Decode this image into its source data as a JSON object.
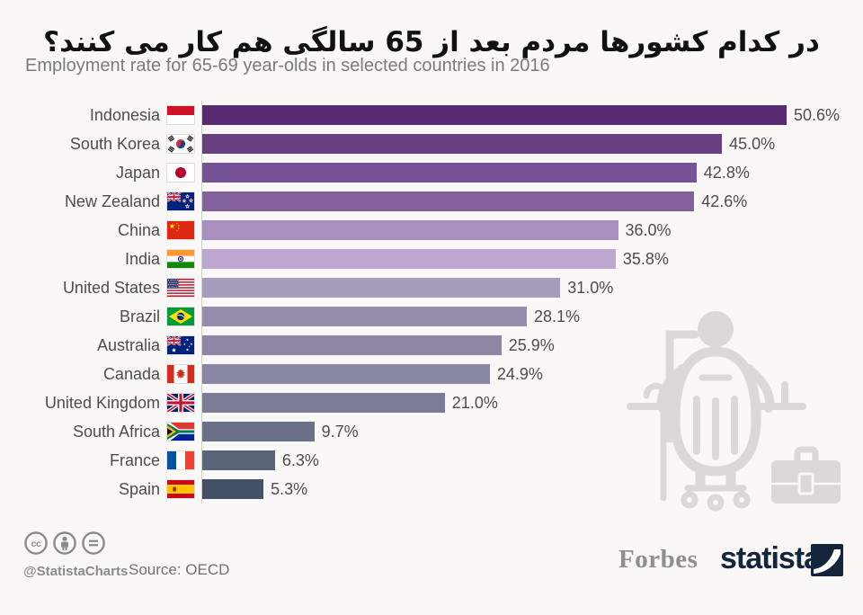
{
  "header": {
    "title_fa": "در کدام کشورها مردم بعد از 65 سالگی هم کار می کنند؟",
    "subtitle": "Employment rate for 65-69 year-olds in selected countries in 2016"
  },
  "chart_data": {
    "type": "bar",
    "orientation": "horizontal",
    "unit": "%",
    "xlim": [
      0,
      50.6
    ],
    "grid": false,
    "legend": "none",
    "categories": [
      "Indonesia",
      "South Korea",
      "Japan",
      "New Zealand",
      "China",
      "India",
      "United States",
      "Brazil",
      "Australia",
      "Canada",
      "United Kingdom",
      "South Africa",
      "France",
      "Spain"
    ],
    "values": [
      50.6,
      45.0,
      42.8,
      42.6,
      36.0,
      35.8,
      31.0,
      28.1,
      25.9,
      24.9,
      21.0,
      9.7,
      6.3,
      5.3
    ],
    "series": [
      {
        "country": "Indonesia",
        "flag": "indonesia",
        "value": 50.6,
        "label": "50.6%",
        "color": "#582a72"
      },
      {
        "country": "South Korea",
        "flag": "south-korea",
        "value": 45.0,
        "label": "45.0%",
        "color": "#664080"
      },
      {
        "country": "Japan",
        "flag": "japan",
        "value": 42.8,
        "label": "42.8%",
        "color": "#765296"
      },
      {
        "country": "New Zealand",
        "flag": "new-zealand",
        "value": 42.6,
        "label": "42.6%",
        "color": "#83619f"
      },
      {
        "country": "China",
        "flag": "china",
        "value": 36.0,
        "label": "36.0%",
        "color": "#a88fc0"
      },
      {
        "country": "India",
        "flag": "india",
        "value": 35.8,
        "label": "35.8%",
        "color": "#bda6d0"
      },
      {
        "country": "United States",
        "flag": "united-states",
        "value": 31.0,
        "label": "31.0%",
        "color": "#a69cbb"
      },
      {
        "country": "Brazil",
        "flag": "brazil",
        "value": 28.1,
        "label": "28.1%",
        "color": "#968dac"
      },
      {
        "country": "Australia",
        "flag": "australia",
        "value": 25.9,
        "label": "25.9%",
        "color": "#8d86a4"
      },
      {
        "country": "Canada",
        "flag": "canada",
        "value": 24.9,
        "label": "24.9%",
        "color": "#8a87a5"
      },
      {
        "country": "United Kingdom",
        "flag": "united-kingdom",
        "value": 21.0,
        "label": "21.0%",
        "color": "#7b7b95"
      },
      {
        "country": "South Africa",
        "flag": "south-africa",
        "value": 9.7,
        "label": "9.7%",
        "color": "#6a7088"
      },
      {
        "country": "France",
        "flag": "france",
        "value": 6.3,
        "label": "6.3%",
        "color": "#596478"
      },
      {
        "country": "Spain",
        "flag": "spain",
        "value": 5.3,
        "label": "5.3%",
        "color": "#445267"
      }
    ]
  },
  "footer": {
    "icons": [
      "cc-icon",
      "attribution-icon",
      "equal-icon"
    ],
    "handle": "@StatistaCharts",
    "source": "Source: OECD",
    "forbes_logo_text": "Forbes",
    "statista_logo_text": "statista",
    "statista_navy": "#13263c"
  }
}
